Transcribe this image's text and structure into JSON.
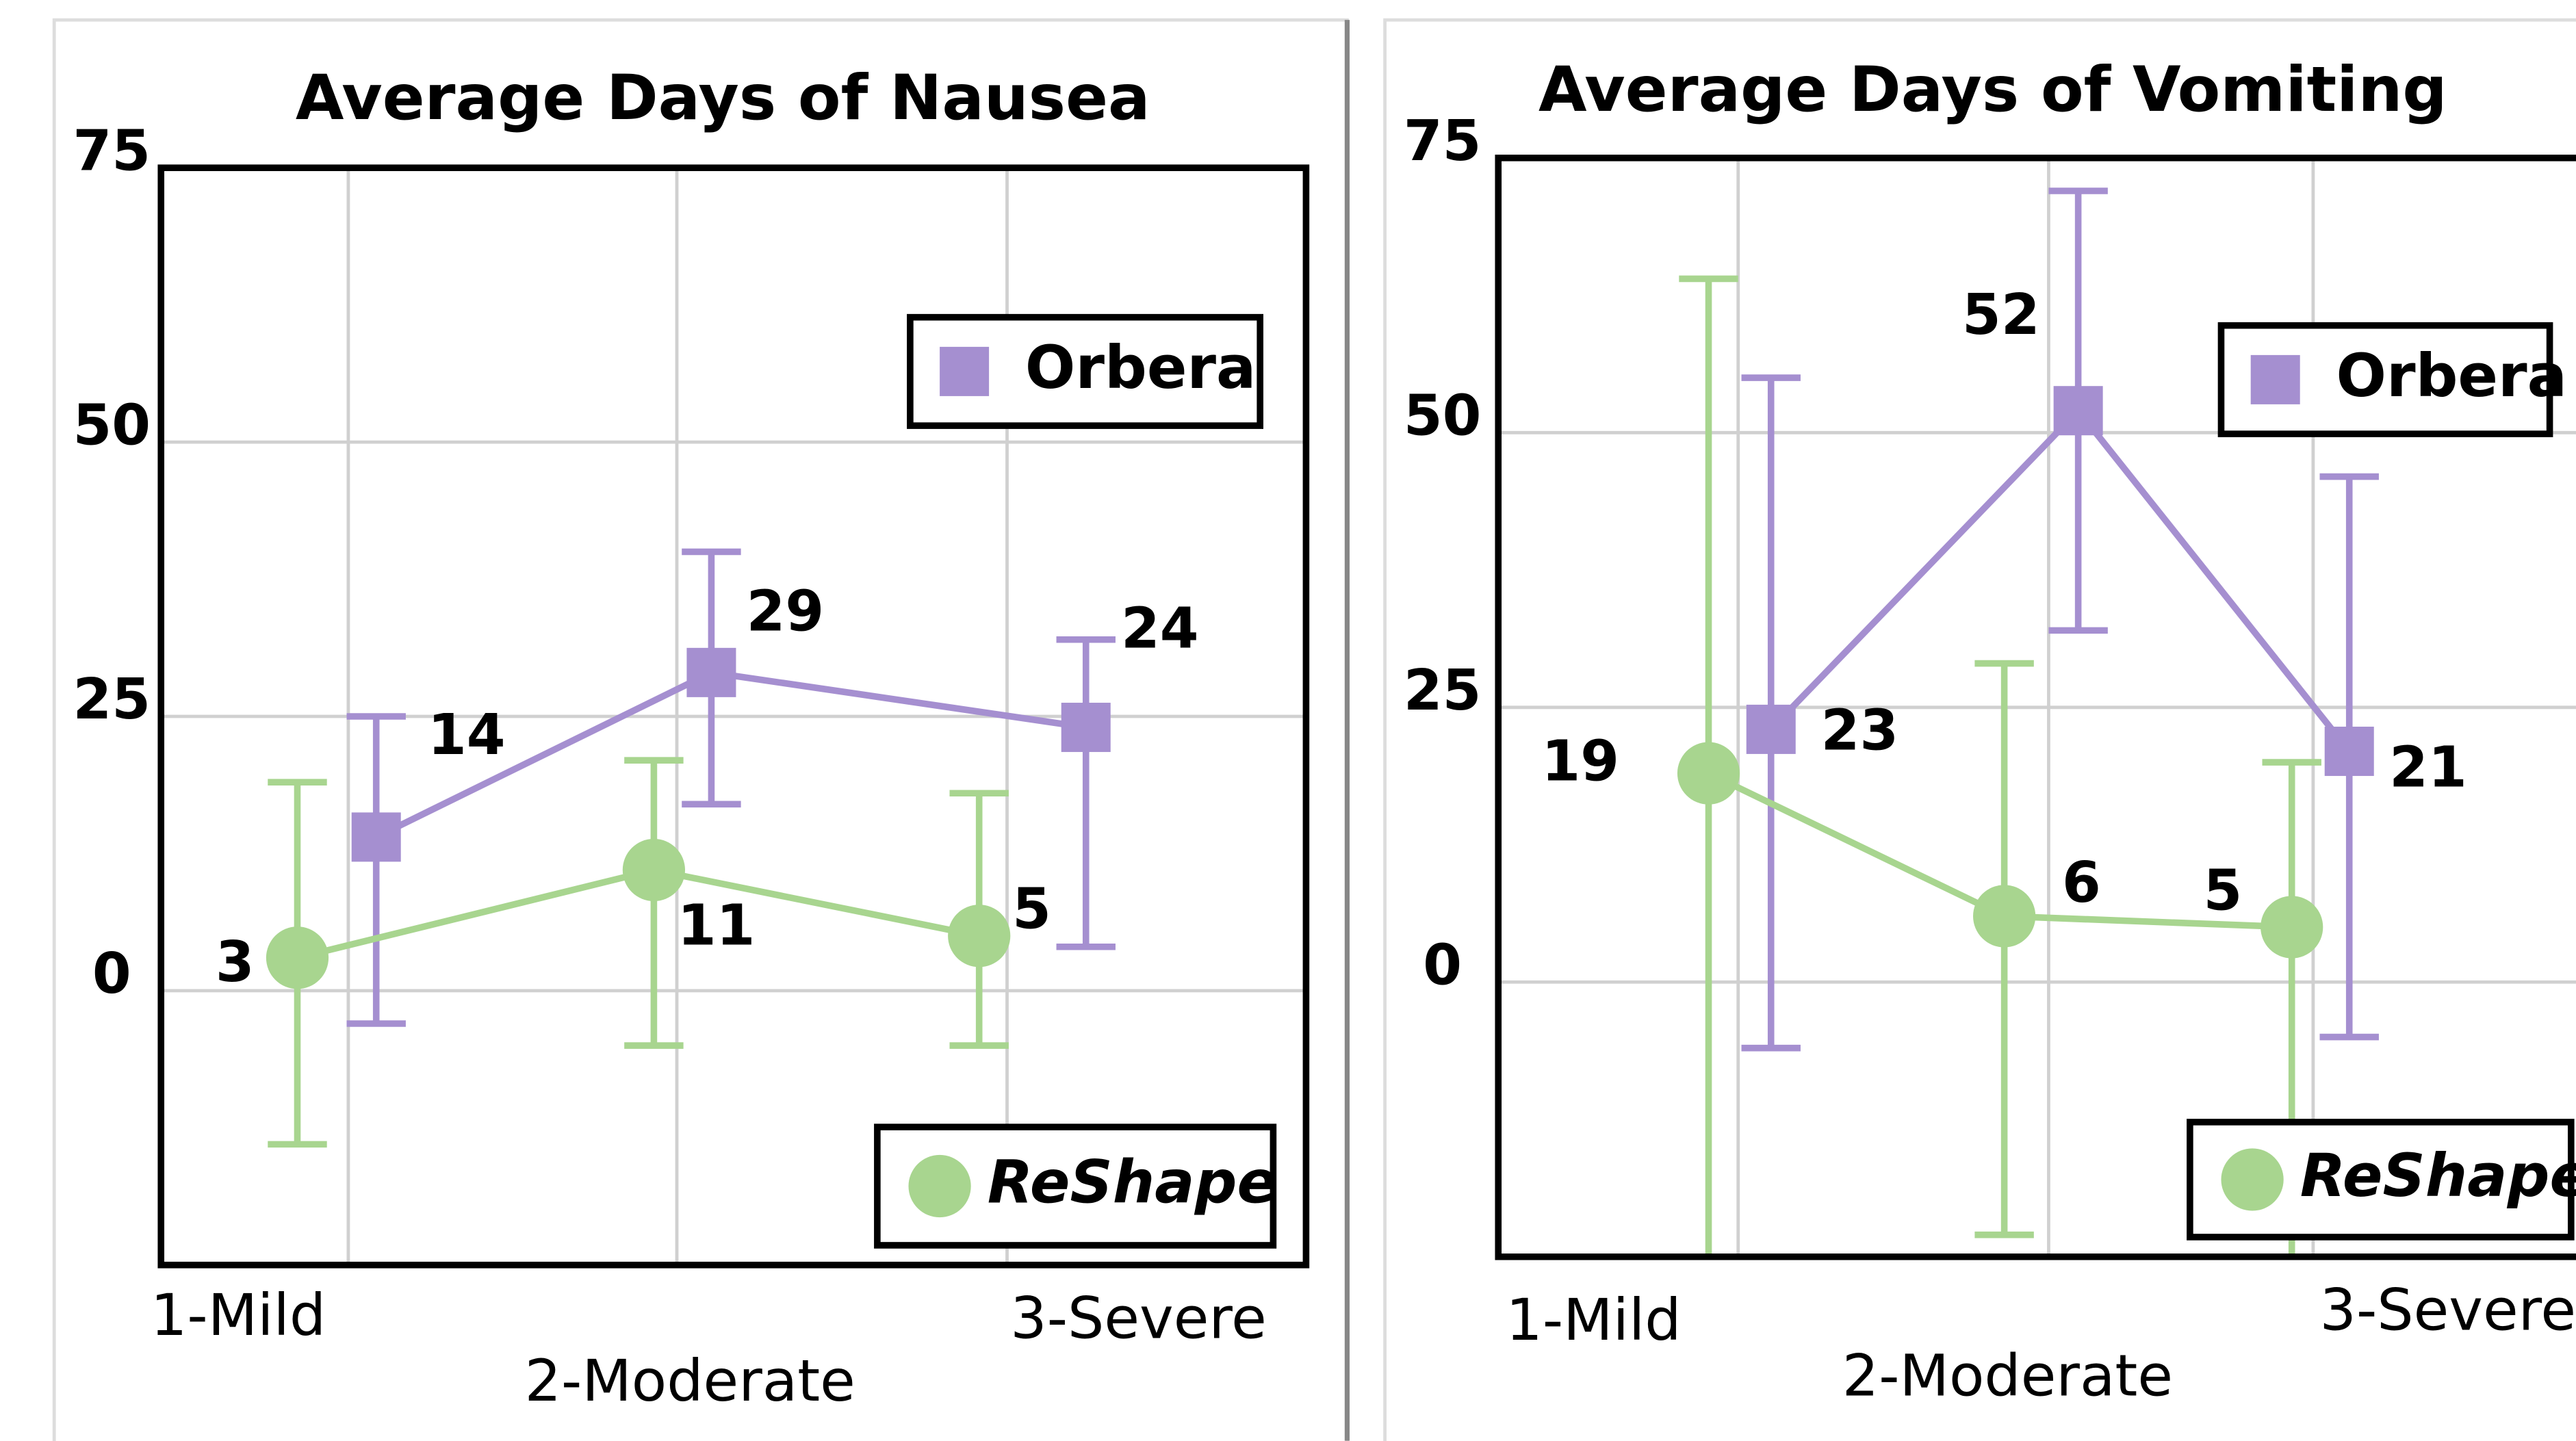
{
  "chart_data": [
    {
      "type": "line",
      "title": "Average Days of Nausea",
      "categories": [
        "1-Mild",
        "2-Moderate",
        "3-Severe"
      ],
      "ylim": [
        -25,
        75
      ],
      "yticks": [
        0,
        25,
        50,
        75
      ],
      "grid": true,
      "series": [
        {
          "name": "Orbera",
          "color": "#a58fd0",
          "marker": "square",
          "legend": "upper right",
          "values": [
            14,
            29,
            24
          ],
          "err_upper": [
            25,
            40,
            32
          ],
          "err_lower": [
            -3,
            17,
            4
          ]
        },
        {
          "name": "ReShape",
          "color": "#a8d58f",
          "marker": "circle",
          "legend": "lower right",
          "values": [
            3,
            11,
            5
          ],
          "err_upper": [
            19,
            21,
            18
          ],
          "err_lower": [
            -14,
            -5,
            -5
          ]
        }
      ]
    },
    {
      "type": "line",
      "title": "Average Days of Vomiting",
      "categories": [
        "1-Mild",
        "2-Moderate",
        "3-Severe"
      ],
      "ylim": [
        -25,
        75
      ],
      "yticks": [
        0,
        25,
        50,
        75
      ],
      "grid": true,
      "series": [
        {
          "name": "Orbera",
          "color": "#a58fd0",
          "marker": "square",
          "legend": "upper right",
          "values": [
            23,
            52,
            21
          ],
          "err_upper": [
            55,
            72,
            46
          ],
          "err_lower": [
            -6,
            32,
            -5
          ]
        },
        {
          "name": "ReShape",
          "color": "#a8d58f",
          "marker": "circle",
          "legend": "lower right",
          "values": [
            19,
            6,
            5
          ],
          "err_upper": [
            64,
            29,
            20
          ],
          "err_lower": [
            -27,
            -23,
            -27
          ]
        }
      ]
    }
  ]
}
